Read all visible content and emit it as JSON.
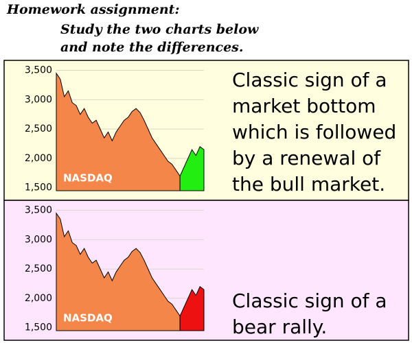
{
  "header": {
    "lines": [
      "Homework assignment:",
      "Study the two charts below",
      "and note the differences."
    ]
  },
  "chart_data": [
    {
      "type": "area",
      "label": "NASDAQ",
      "background": "#ffffe0",
      "grid": true,
      "annotation": [
        "Classic sign of a",
        "market bottom",
        "which is followed",
        "by a renewal of",
        "the bull market."
      ],
      "x": [
        0,
        1,
        2,
        3,
        4,
        5,
        6,
        7,
        8,
        9,
        10,
        11,
        12,
        13,
        14,
        15,
        16,
        17,
        18,
        19,
        20,
        21,
        22,
        23,
        24,
        25,
        26,
        27,
        28,
        29,
        30,
        31,
        32,
        33,
        34,
        35,
        36,
        37
      ],
      "xlim": [
        0,
        37
      ],
      "ylim": [
        1450,
        3600
      ],
      "yticks": [
        {
          "value": 1500,
          "label": "1,500"
        },
        {
          "value": 2000,
          "label": "2,000"
        },
        {
          "value": 2500,
          "label": "2,500"
        },
        {
          "value": 3000,
          "label": "3,000"
        },
        {
          "value": 3500,
          "label": "3,500"
        }
      ],
      "series": [
        {
          "color": "#f4864a",
          "values": [
            3450,
            3350,
            3050,
            3150,
            2950,
            2900,
            2750,
            2850,
            2700,
            2600,
            2650,
            2500,
            2350,
            2450,
            2300,
            2450,
            2550,
            2650,
            2700,
            2800,
            2850,
            2780,
            2650,
            2500,
            2350,
            2250,
            2150,
            2050,
            1950,
            1900,
            1800,
            1700,
            null,
            null,
            null,
            null,
            null,
            null
          ]
        },
        {
          "color": "#22ee11",
          "values": [
            null,
            null,
            null,
            null,
            null,
            null,
            null,
            null,
            null,
            null,
            null,
            null,
            null,
            null,
            null,
            null,
            null,
            null,
            null,
            null,
            null,
            null,
            null,
            null,
            null,
            null,
            null,
            null,
            null,
            null,
            null,
            1700,
            1850,
            2000,
            2150,
            2050,
            2200,
            2150
          ]
        }
      ]
    },
    {
      "type": "area",
      "label": "NASDAQ",
      "background": "#ffe6ff",
      "grid": true,
      "annotation": [
        "Classic sign of a",
        "bear rally."
      ],
      "x": [
        0,
        1,
        2,
        3,
        4,
        5,
        6,
        7,
        8,
        9,
        10,
        11,
        12,
        13,
        14,
        15,
        16,
        17,
        18,
        19,
        20,
        21,
        22,
        23,
        24,
        25,
        26,
        27,
        28,
        29,
        30,
        31,
        32,
        33,
        34,
        35,
        36,
        37
      ],
      "xlim": [
        0,
        37
      ],
      "ylim": [
        1450,
        3600
      ],
      "yticks": [
        {
          "value": 1500,
          "label": "1,500"
        },
        {
          "value": 2000,
          "label": "2,000"
        },
        {
          "value": 2500,
          "label": "2,500"
        },
        {
          "value": 3000,
          "label": "3,000"
        },
        {
          "value": 3500,
          "label": "3,500"
        }
      ],
      "series": [
        {
          "color": "#f4864a",
          "values": [
            3450,
            3350,
            3050,
            3150,
            2950,
            2900,
            2750,
            2850,
            2700,
            2600,
            2650,
            2500,
            2350,
            2450,
            2300,
            2450,
            2550,
            2650,
            2700,
            2800,
            2850,
            2780,
            2650,
            2500,
            2350,
            2250,
            2150,
            2050,
            1950,
            1900,
            1800,
            1700,
            null,
            null,
            null,
            null,
            null,
            null
          ]
        },
        {
          "color": "#ee1111",
          "values": [
            null,
            null,
            null,
            null,
            null,
            null,
            null,
            null,
            null,
            null,
            null,
            null,
            null,
            null,
            null,
            null,
            null,
            null,
            null,
            null,
            null,
            null,
            null,
            null,
            null,
            null,
            null,
            null,
            null,
            null,
            null,
            1700,
            1850,
            2000,
            2150,
            2050,
            2200,
            2150
          ]
        }
      ]
    }
  ]
}
